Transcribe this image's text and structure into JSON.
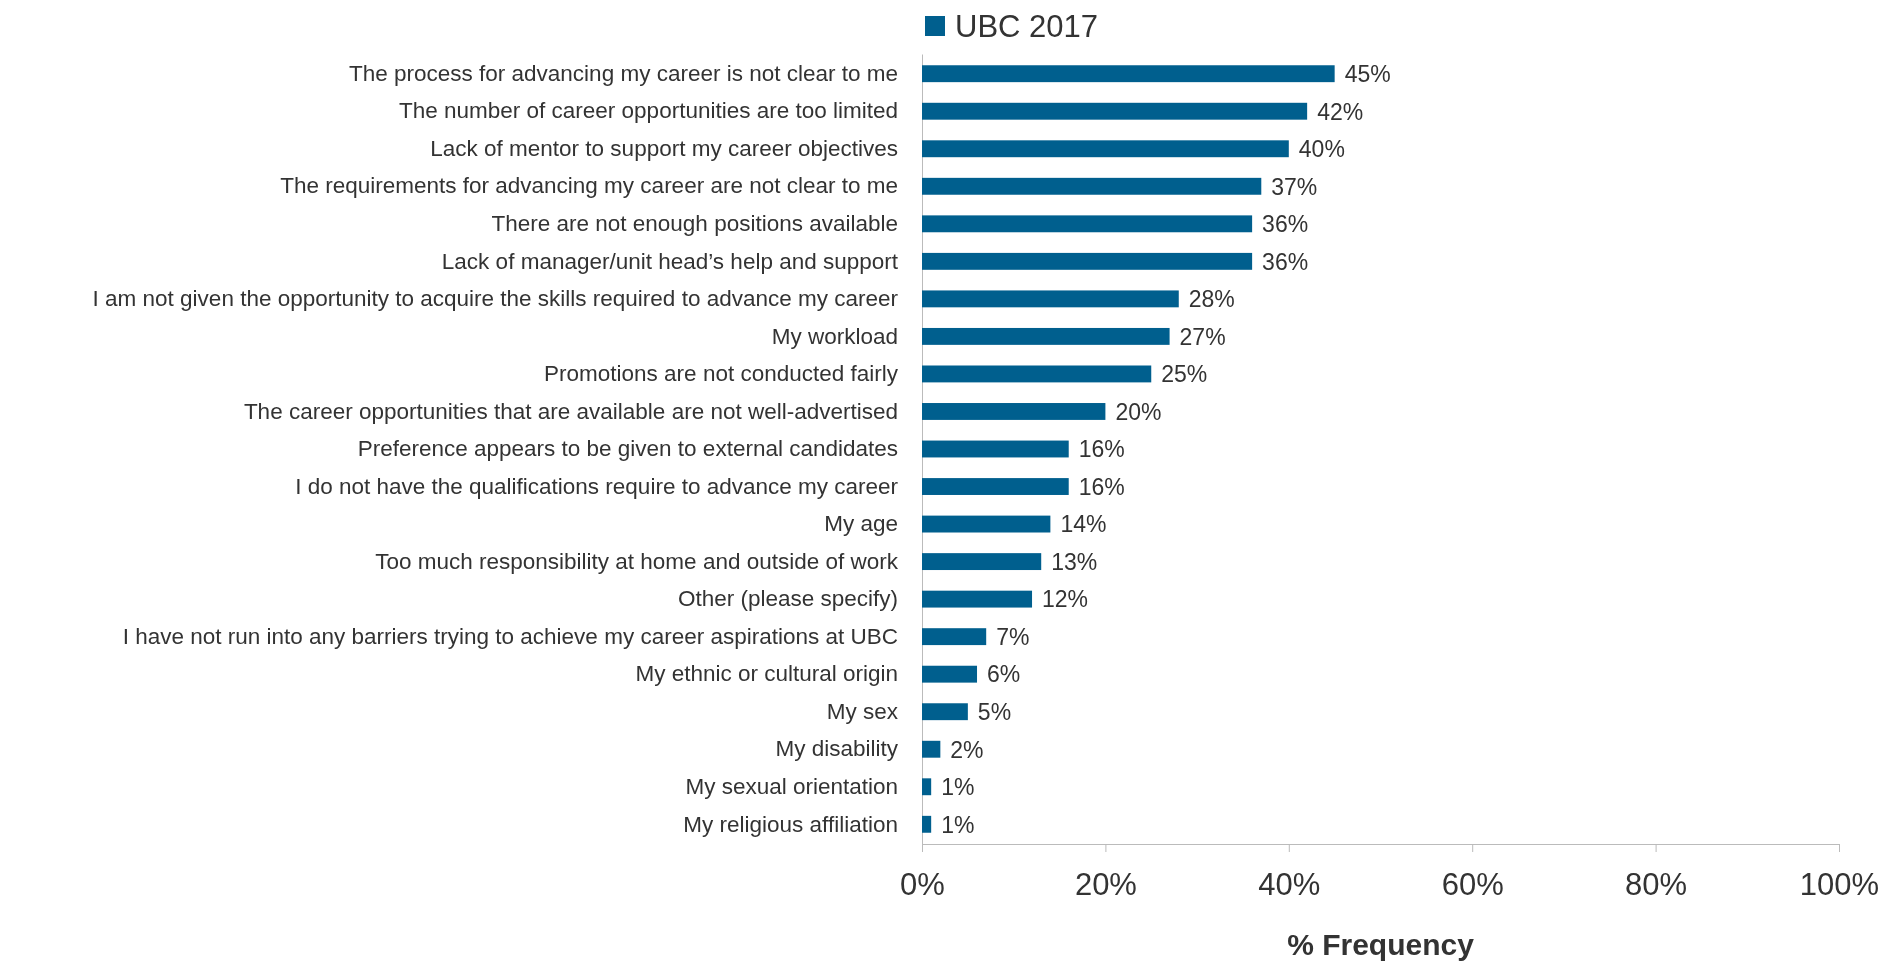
{
  "chart_data": {
    "type": "bar",
    "orientation": "horizontal",
    "xlabel": "% Frequency",
    "categories": [
      "The process for advancing my career is not clear to me",
      "The number of career opportunities are too limited",
      "Lack of mentor to support my career objectives",
      "The requirements for advancing my career are not clear to me",
      "There are not enough positions available",
      "Lack of manager/unit head’s help and support",
      "I am not given the opportunity to acquire the skills required to advance my career",
      "My workload",
      "Promotions are not conducted fairly",
      "The career opportunities that are available are not well-advertised",
      "Preference appears to be given to external candidates",
      "I do not have the qualifications require to advance my career",
      "My age",
      "Too much responsibility at home and outside of work",
      "Other (please specify)",
      "I have not run into any barriers trying to achieve my career aspirations at UBC",
      "My ethnic or cultural origin",
      "My sex",
      "My disability",
      "My sexual orientation",
      "My religious affiliation"
    ],
    "series": [
      {
        "name": "UBC 2017",
        "color": "#005f8e",
        "values": [
          45,
          42,
          40,
          37,
          36,
          36,
          28,
          27,
          25,
          20,
          16,
          16,
          14,
          13,
          12,
          7,
          6,
          5,
          2,
          1,
          1
        ],
        "value_labels": [
          "45%",
          "42%",
          "40%",
          "37%",
          "36%",
          "36%",
          "28%",
          "27%",
          "25%",
          "20%",
          "16%",
          "16%",
          "14%",
          "13%",
          "12%",
          "7%",
          "6%",
          "5%",
          "2%",
          "1%",
          "1%"
        ]
      }
    ],
    "xlim": [
      0,
      100
    ],
    "xticks": [
      {
        "value": 0,
        "label": "0%"
      },
      {
        "value": 20,
        "label": "20%"
      },
      {
        "value": 40,
        "label": "40%"
      },
      {
        "value": 60,
        "label": "60%"
      },
      {
        "value": 80,
        "label": "80%"
      },
      {
        "value": 100,
        "label": "100%"
      }
    ],
    "legend": "top",
    "grid": false
  }
}
